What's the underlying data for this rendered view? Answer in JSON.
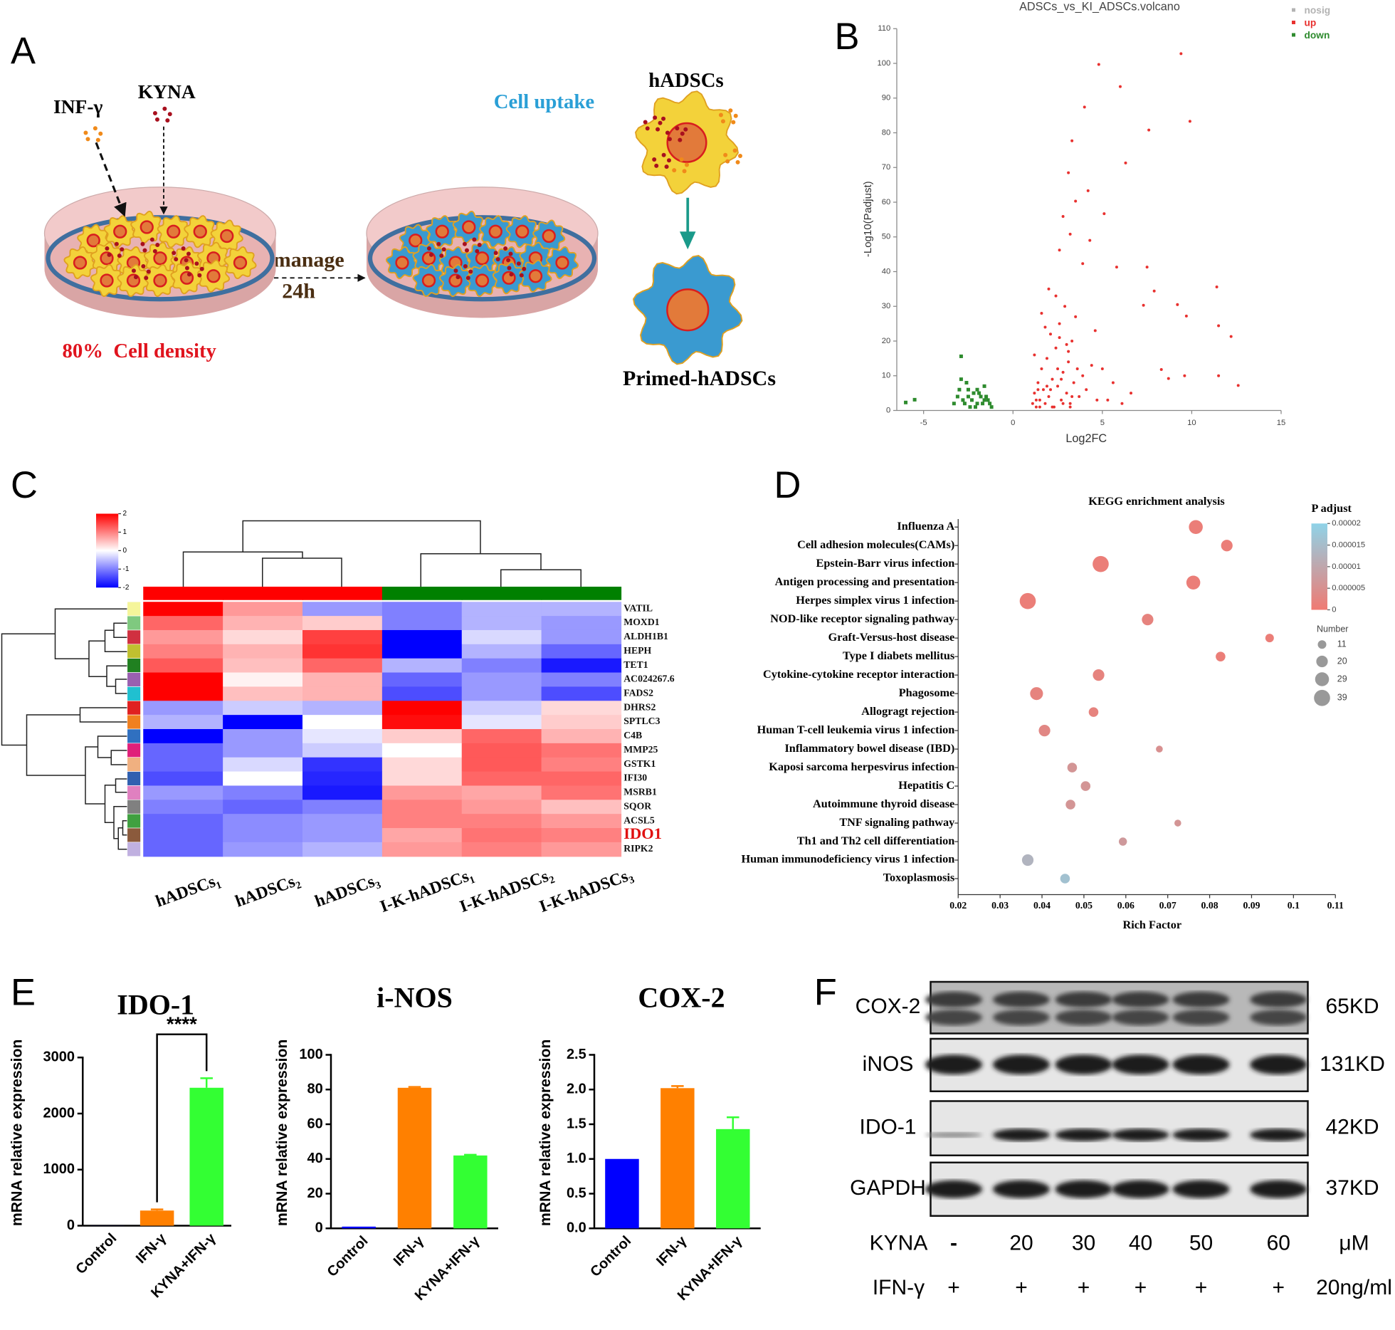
{
  "panel_a": {
    "label": "A",
    "inf": "INF-γ",
    "kyna": "KYNA",
    "uptake": "Cell uptake",
    "cell": "hADSCs",
    "manage": "manage",
    "time": "24h",
    "density": "80%  Cell density",
    "primed": "Primed-hADSCs"
  },
  "chart_data": [
    {
      "type": "scatter",
      "panel_label": "B",
      "title": "ADSCs_vs_KI_ADSCs.volcano",
      "x_label": "Log2FC",
      "y_label": "-Log10(Padjust)",
      "xlim": [
        -6.5,
        15
      ],
      "xticks": [
        -5,
        0,
        5,
        10,
        15
      ],
      "ylim": [
        0,
        110
      ],
      "yticks": [
        0,
        10,
        20,
        30,
        40,
        50,
        60,
        70,
        80,
        90,
        100,
        110
      ],
      "series": [
        {
          "name": "nosig",
          "color": "#b3b3b3",
          "marker": "circle",
          "x": [],
          "values": []
        },
        {
          "name": "up",
          "color": "#e8312f",
          "marker": "circle",
          "x": [
            4.8,
            9.4,
            6.0,
            4.0,
            9.9,
            3.3,
            7.6,
            6.3,
            3.1,
            4.2,
            3.5,
            2.8,
            5.1,
            3.2,
            2.6,
            4.3,
            3.9,
            5.8,
            7.5,
            7.9,
            11.4,
            9.2,
            7.3,
            9.7,
            11.5,
            12.2,
            8.3,
            9.6,
            11.5,
            12.6,
            8.7,
            1.1,
            1.2,
            1.3,
            1.4,
            1.5,
            1.6,
            1.7,
            1.8,
            1.9,
            2.0,
            2.1,
            2.2,
            2.3,
            2.4,
            2.5,
            2.6,
            2.7,
            2.8,
            2.9,
            3.0,
            3.1,
            3.2,
            3.3,
            3.4,
            3.5,
            3.7,
            3.9,
            4.1,
            4.4,
            4.7,
            1.2,
            1.5,
            1.8,
            2.1,
            2.4,
            2.7,
            3.0,
            3.3,
            3.6,
            1.3,
            1.6,
            1.9,
            2.2,
            2.5,
            2.8,
            3.1,
            1.4,
            2.0,
            2.6,
            3.2,
            5.3,
            5.6,
            6.1,
            6.6,
            5.0,
            4.6
          ],
          "values": [
            99.7,
            102.8,
            93.3,
            87.4,
            83.3,
            77.7,
            80.8,
            71.3,
            68.5,
            63.3,
            60.3,
            55.9,
            56.7,
            50.8,
            46.2,
            49.0,
            42.3,
            41.3,
            41.3,
            34.4,
            35.6,
            30.5,
            30.3,
            27.2,
            24.4,
            21.3,
            11.8,
            10.0,
            10.0,
            7.2,
            9.2,
            2,
            5,
            1,
            8,
            3,
            12,
            6,
            2,
            15,
            4,
            22,
            9,
            1,
            18,
            7,
            25,
            3,
            11,
            30,
            5,
            14,
            2,
            20,
            8,
            27,
            4,
            10,
            6,
            13,
            3,
            16,
            1,
            24,
            6,
            33,
            9,
            19,
            4,
            12,
            3,
            28,
            7,
            1,
            12,
            2,
            17,
            6,
            35,
            21,
            1,
            3,
            8,
            2,
            5,
            12,
            23
          ]
        },
        {
          "name": "down",
          "color": "#2e8b2e",
          "marker": "square",
          "x": [
            -6.0,
            -5.5,
            -2.9,
            -3.3,
            -3.0,
            -2.8,
            -2.6,
            -2.4,
            -2.2,
            -2.0,
            -1.8,
            -1.6,
            -1.4,
            -1.2,
            -3.1,
            -2.7,
            -2.5,
            -2.3,
            -2.1,
            -1.9,
            -1.7,
            -1.5,
            -1.3,
            -2.9,
            -2.5,
            -2.0,
            -1.6
          ],
          "values": [
            2.3,
            3.1,
            15.6,
            2,
            6,
            3,
            8,
            1,
            5,
            2,
            4,
            7,
            3,
            1,
            4,
            2,
            6,
            3,
            1,
            5,
            2,
            4,
            2,
            9,
            4,
            6,
            3
          ]
        }
      ]
    },
    {
      "type": "heatmap",
      "panel_label": "C",
      "rows": [
        "VATIL",
        "MOXD1",
        "ALDH1B1",
        "HEPH",
        "TET1",
        "AC024267.6",
        "FADS2",
        "DHRS2",
        "SPTLC3",
        "C4B",
        "MMP25",
        "GSTK1",
        "IFI30",
        "MSRB1",
        "SQOR",
        "ACSL5",
        "IDO1",
        "RIPK2"
      ],
      "columns": [
        "hADSCs₁",
        "hADSCs₂",
        "hADSCs₃",
        "I-K-hADSCs₁",
        "I-K-hADSCs₂",
        "I-K-hADSCs₃"
      ],
      "values": [
        [
          2.0,
          0.8,
          -0.8,
          -1.0,
          -0.6,
          -0.6
        ],
        [
          1.2,
          0.6,
          0.4,
          -1.0,
          -0.6,
          -0.8
        ],
        [
          0.8,
          0.3,
          1.5,
          -2.0,
          -0.3,
          -0.8
        ],
        [
          1.0,
          0.6,
          1.6,
          -2.0,
          -0.6,
          -1.2
        ],
        [
          1.3,
          0.5,
          1.2,
          -0.6,
          -1.0,
          -1.8
        ],
        [
          2.0,
          0.1,
          0.6,
          -1.2,
          -0.8,
          -1.0
        ],
        [
          2.0,
          0.5,
          0.6,
          -1.4,
          -0.8,
          -1.4
        ],
        [
          -0.8,
          -0.4,
          -0.6,
          2.0,
          -0.4,
          0.3
        ],
        [
          -0.6,
          -2.0,
          0.0,
          1.9,
          -0.2,
          0.4
        ],
        [
          -2.0,
          -0.8,
          -0.2,
          0.4,
          1.2,
          0.6
        ],
        [
          -1.2,
          -0.8,
          -0.4,
          0.0,
          1.3,
          1.1
        ],
        [
          -1.2,
          -0.3,
          -1.6,
          0.3,
          1.3,
          1.0
        ],
        [
          -1.4,
          0.0,
          -1.7,
          0.3,
          1.2,
          1.2
        ],
        [
          -0.8,
          -1.0,
          -1.8,
          0.8,
          0.7,
          1.1
        ],
        [
          -1.0,
          -1.2,
          -1.0,
          1.0,
          0.8,
          0.5
        ],
        [
          -1.2,
          -0.9,
          -0.8,
          1.0,
          1.0,
          0.8
        ],
        [
          -1.2,
          -0.9,
          -0.8,
          0.7,
          1.1,
          1.0
        ],
        [
          -1.2,
          -0.8,
          -0.6,
          0.8,
          1.0,
          0.8
        ]
      ],
      "colorscale": [
        "#0000ff",
        "#ffffff",
        "#ff0000"
      ],
      "clim": [
        -2,
        2
      ],
      "cticks": [
        -2,
        -1,
        0,
        1,
        2
      ],
      "column_colors": [
        "#ff0000",
        "#ff0000",
        "#ff0000",
        "#008000",
        "#008000",
        "#008000"
      ],
      "row_colors": [
        "#f5f59a",
        "#7fc97f",
        "#d03040",
        "#c0c030",
        "#208020",
        "#9a60b0",
        "#20c0d0",
        "#e02020",
        "#f08020",
        "#3070c0",
        "#e0207a",
        "#f0b080",
        "#3060b0",
        "#e080c0",
        "#808080",
        "#40a040",
        "#8b5a3c",
        "#c0b0e0"
      ],
      "highlight": {
        "row": 16,
        "color": "#e01010"
      }
    },
    {
      "type": "bubble",
      "panel_label": "D",
      "title": "KEGG enrichment analysis",
      "x_label": "Rich Factor",
      "categories": [
        "Influenza A",
        "Cell adhesion molecules(CAMs)",
        "Epstein-Barr virus infection",
        "Antigen processing and presentation",
        "Herpes simplex virus 1 infection",
        "NOD-like receptor signaling pathway",
        "Graft-Versus-host disease",
        "Type I diabets mellitus",
        "Cytokine-cytokine receptor interaction",
        "Phagosome",
        "Allogragt rejection",
        "Human T-cell leukemia virus 1 infection",
        "Inflammatory bowel disease (IBD)",
        "Kaposi sarcoma herpesvirus infection",
        "Hepatitis C",
        "Autoimmune thyroid disease",
        "TNF signaling pathway",
        "Th1 and Th2 cell differentiation",
        "Human immunodeficiency virus 1 infection",
        "Toxoplasmosis"
      ],
      "values": [
        0.0767,
        0.0841,
        0.054,
        0.0761,
        0.0366,
        0.0652,
        0.0943,
        0.0826,
        0.0535,
        0.0387,
        0.0523,
        0.0406,
        0.068,
        0.0472,
        0.0504,
        0.0468,
        0.0724,
        0.0593,
        0.0366,
        0.0455
      ],
      "sizes": [
        29,
        20,
        39,
        29,
        39,
        20,
        11,
        14,
        20,
        25,
        14,
        20,
        7,
        14,
        14,
        14,
        7,
        10,
        20,
        14
      ],
      "p_adjust": [
        1e-06,
        1e-06,
        1e-06,
        1e-06,
        1e-06,
        2e-06,
        1e-06,
        1e-06,
        2e-06,
        2e-06,
        2e-06,
        3e-06,
        5e-06,
        6e-06,
        6e-06,
        6e-06,
        6e-06,
        7e-06,
        1.3e-05,
        1.6e-05
      ],
      "xlim": [
        0.02,
        0.11
      ],
      "xticks": [
        0.02,
        0.03,
        0.04,
        0.05,
        0.06,
        0.07,
        0.08,
        0.09,
        0.1,
        0.11
      ],
      "color_title": "P adjust",
      "colorscale": [
        "#f07a72",
        "#8fd3e8"
      ],
      "clim": [
        0,
        2e-05
      ],
      "cticks": [
        0,
        5e-06,
        1e-05,
        1.5e-05,
        2e-05
      ],
      "size_title": "Number",
      "size_legend": [
        11,
        20,
        29,
        39
      ]
    },
    {
      "type": "bar",
      "panel_label": "E",
      "title": "IDO-1",
      "y_label": "mRNA relative expression",
      "categories": [
        "Control",
        "IFN-γ",
        "KYNA+IFN-γ"
      ],
      "values": [
        1,
        270,
        2460
      ],
      "errors": [
        0,
        20,
        170
      ],
      "colors": [
        "#0000ff",
        "#ff8000",
        "#33ff33"
      ],
      "ylim": [
        0,
        3000
      ],
      "yticks": [
        0,
        1000,
        2000,
        3000
      ],
      "significance": "****"
    },
    {
      "type": "bar",
      "title": "i-NOS",
      "y_label": "mRNA relative expression",
      "categories": [
        "Control",
        "IFN-γ",
        "KYNA+IFN-γ"
      ],
      "values": [
        1,
        81,
        42
      ],
      "errors": [
        0,
        0.5,
        0.4
      ],
      "colors": [
        "#0000ff",
        "#ff8000",
        "#33ff33"
      ],
      "ylim": [
        0,
        100
      ],
      "yticks": [
        0,
        20,
        40,
        60,
        80,
        100
      ]
    },
    {
      "type": "bar",
      "title": "COX-2",
      "y_label": "mRNA relative expression",
      "categories": [
        "Control",
        "IFN-γ",
        "KYNA+IFN-γ"
      ],
      "values": [
        1,
        2.02,
        1.43
      ],
      "errors": [
        0,
        0.03,
        0.17
      ],
      "colors": [
        "#0000ff",
        "#ff8000",
        "#33ff33"
      ],
      "ylim": [
        0,
        2.5
      ],
      "yticks": [
        {
          "value": 0,
          "label": "0.0"
        },
        0.5,
        {
          "value": 1,
          "label": "1.0"
        },
        1.5,
        {
          "value": 2,
          "label": "2.0"
        },
        2.5
      ]
    }
  ],
  "panel_f": {
    "label": "F",
    "proteins": [
      {
        "name": "COX-2",
        "size": "65KD"
      },
      {
        "name": "iNOS",
        "size": "131KD"
      },
      {
        "name": "IDO-1",
        "size": "42KD"
      },
      {
        "name": "GAPDH",
        "size": "37KD"
      }
    ],
    "kyna": {
      "label": "KYNA",
      "doses": [
        "-",
        20,
        30,
        40,
        50,
        60
      ],
      "unit": "μM"
    },
    "ifn": {
      "label": "IFN-γ",
      "marks": [
        "+",
        "+",
        "+",
        "+",
        "+",
        "+"
      ],
      "unit": "20ng/ml"
    }
  }
}
